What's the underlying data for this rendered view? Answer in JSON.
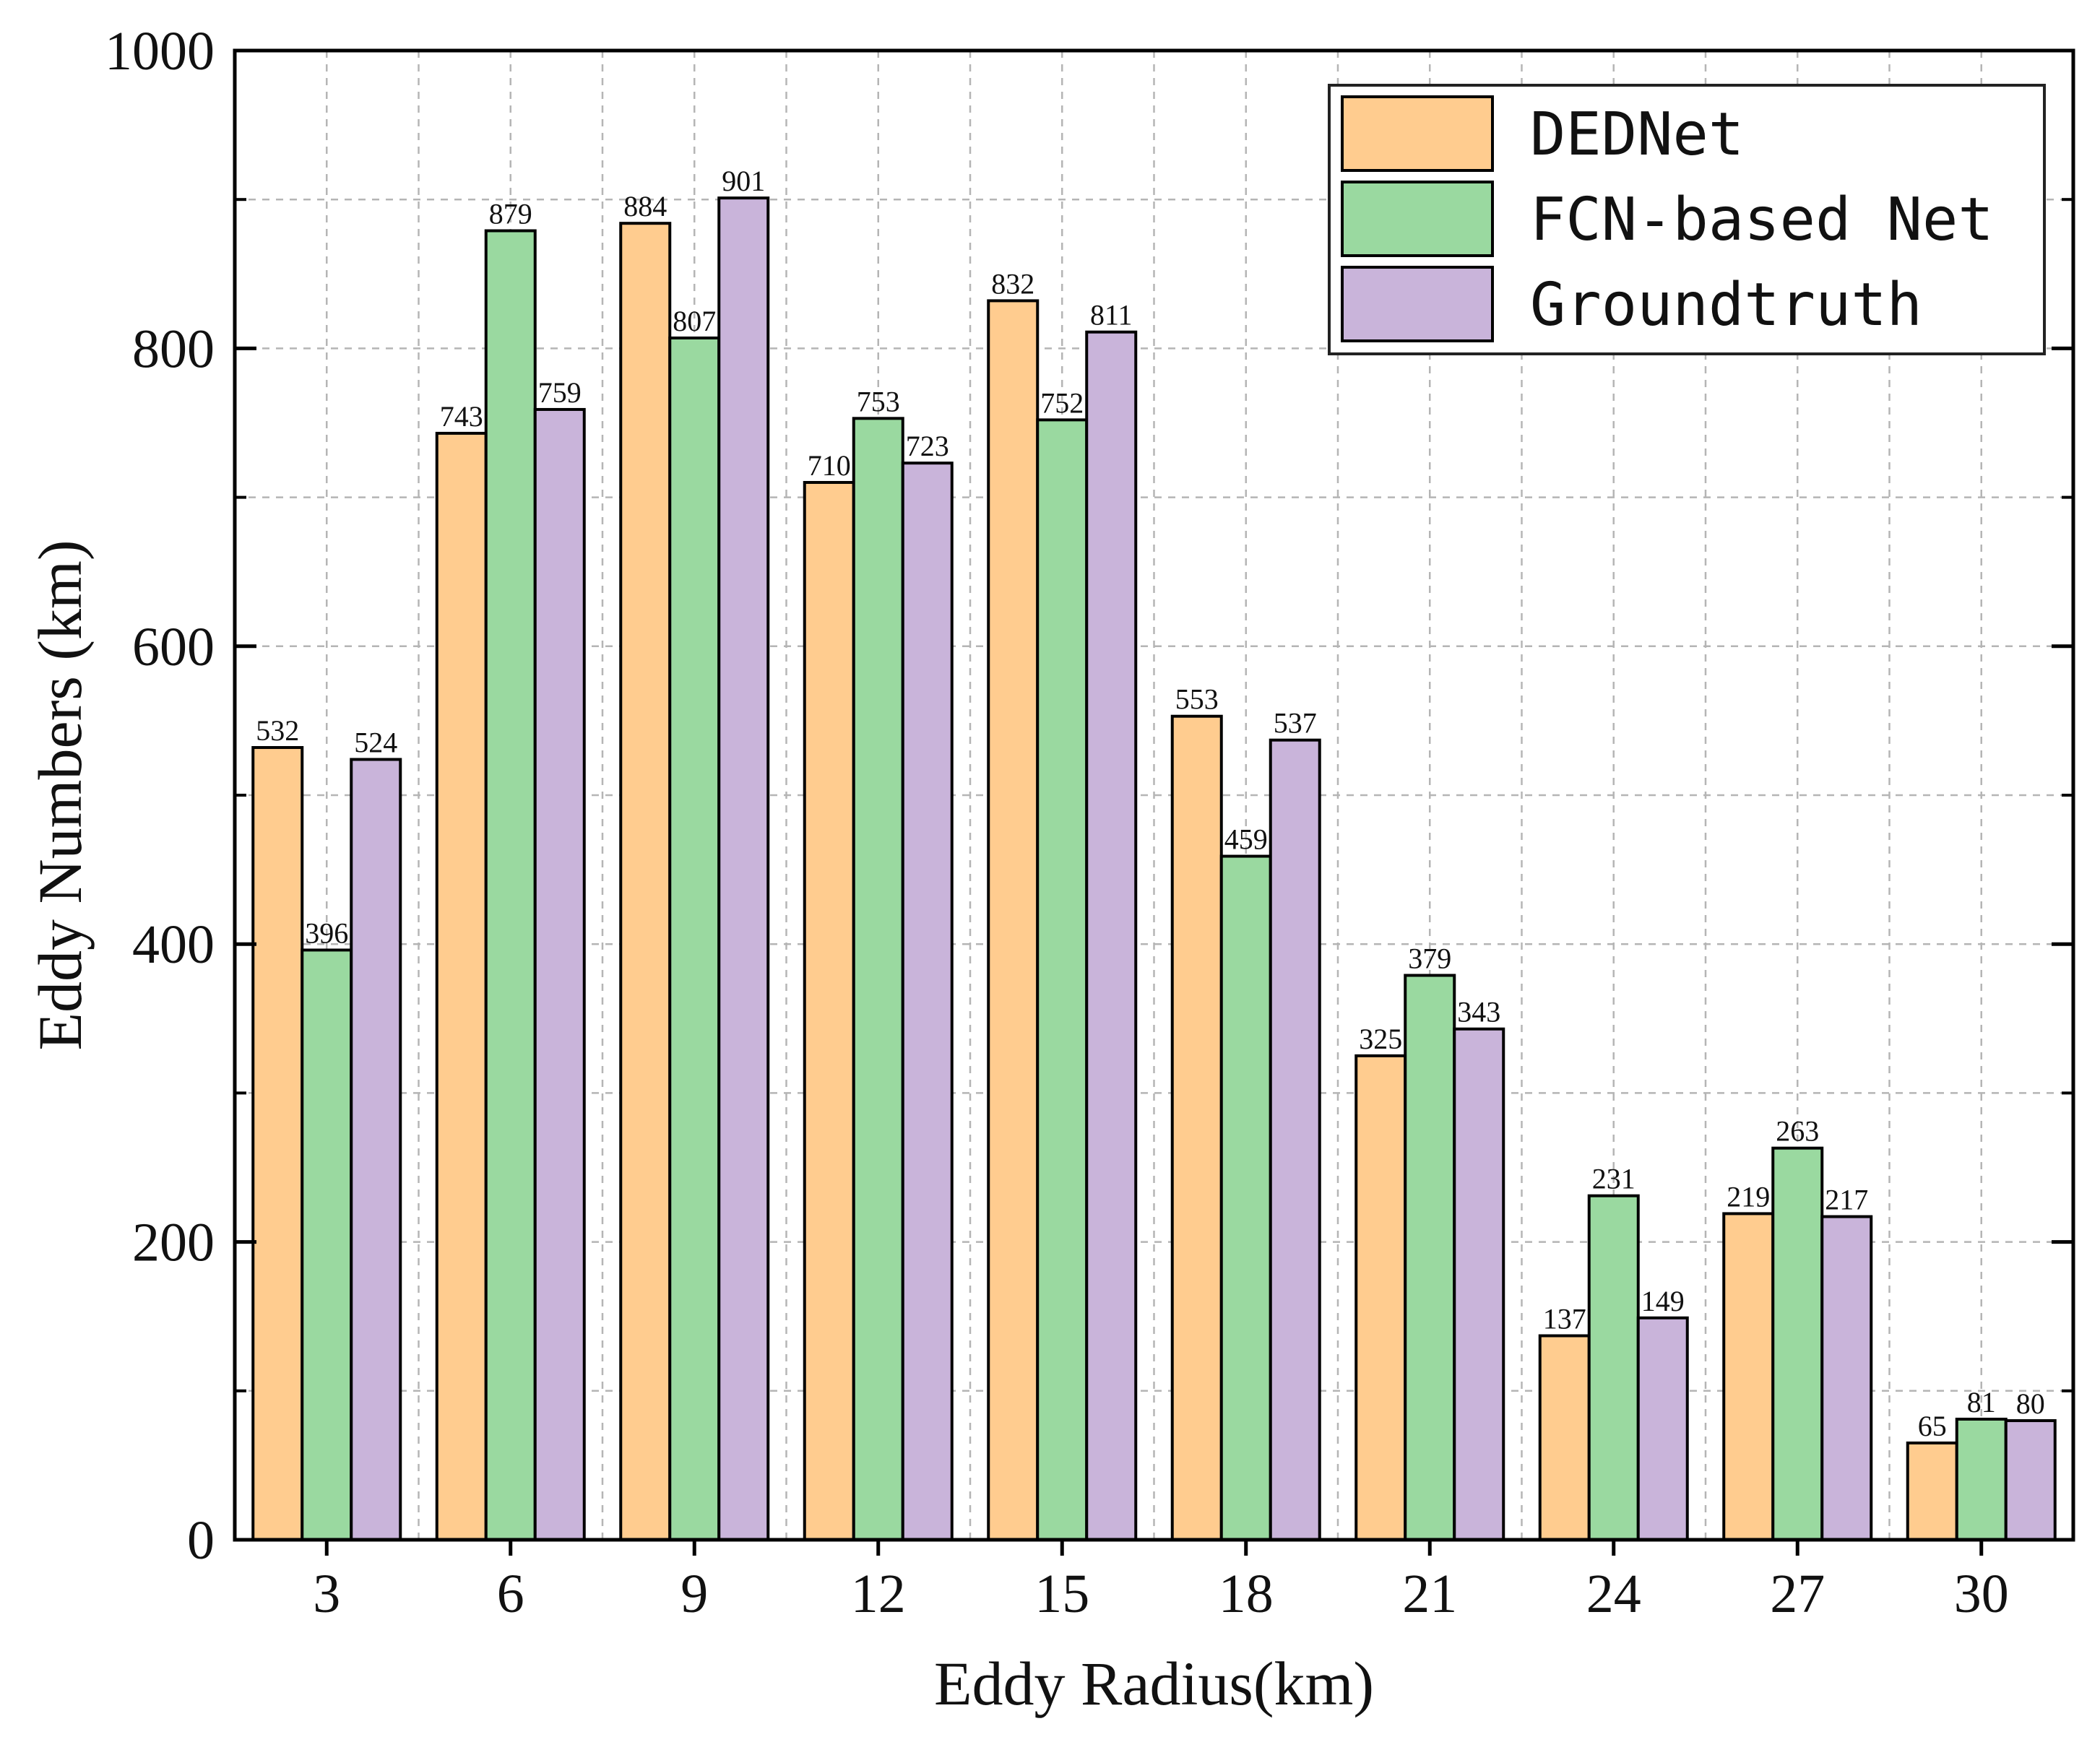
{
  "chart_data": {
    "type": "bar",
    "xlabel": "Eddy Radius(km)",
    "ylabel": "Eddy Numbers (km)",
    "categories": [
      "3",
      "6",
      "9",
      "12",
      "15",
      "18",
      "21",
      "24",
      "27",
      "30"
    ],
    "series": [
      {
        "name": "DEDNet",
        "color": "#FFCC8F",
        "values": [
          532,
          743,
          884,
          710,
          832,
          553,
          325,
          137,
          219,
          65
        ]
      },
      {
        "name": "FCN-based Net",
        "color": "#9AD9A0",
        "values": [
          396,
          879,
          807,
          753,
          752,
          459,
          379,
          231,
          263,
          81
        ]
      },
      {
        "name": "Groundtruth",
        "color": "#C9B4DA",
        "values": [
          524,
          759,
          901,
          723,
          811,
          537,
          343,
          149,
          217,
          80
        ]
      }
    ],
    "ylim": [
      0,
      1000
    ],
    "yticks": [
      0,
      200,
      400,
      600,
      800,
      1000
    ],
    "grid": true,
    "legend_position": "top-right"
  }
}
